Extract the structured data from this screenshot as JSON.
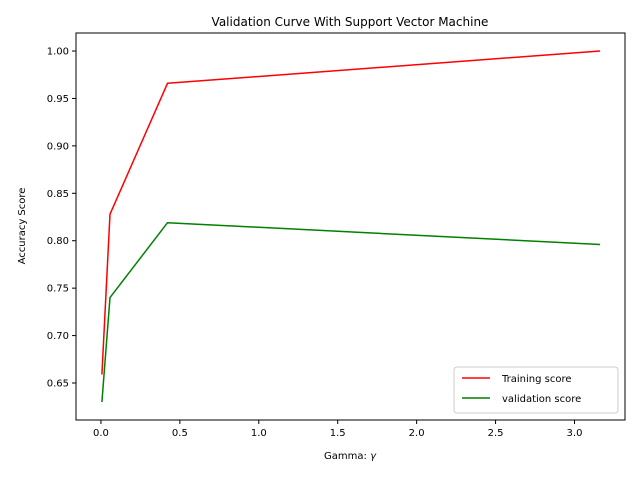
{
  "chart_data": {
    "type": "line",
    "title": "Validation Curve With Support Vector Machine",
    "xlabel": "Gamma: ",
    "xlabel_symbol": "γ",
    "ylabel": "Accuracy Score",
    "xlim": [
      -0.158,
      3.32
    ],
    "ylim": [
      0.611,
      1.019
    ],
    "xticks": [
      0.0,
      0.5,
      1.0,
      1.5,
      2.0,
      2.5,
      3.0
    ],
    "xtick_labels": [
      "0.0",
      "0.5",
      "1.0",
      "1.5",
      "2.0",
      "2.5",
      "3.0"
    ],
    "yticks": [
      0.65,
      0.7,
      0.75,
      0.8,
      0.85,
      0.9,
      0.95,
      1.0
    ],
    "ytick_labels": [
      "0.65",
      "0.70",
      "0.75",
      "0.80",
      "0.85",
      "0.90",
      "0.95",
      "1.00"
    ],
    "grid": false,
    "legend_position": "bottom-right",
    "x": [
      0.0058,
      0.0571,
      0.4214,
      3.1623
    ],
    "series": [
      {
        "name": "Training score",
        "color": "#ff0000",
        "values": [
          0.659,
          0.828,
          0.966,
          1.0
        ]
      },
      {
        "name": "validation score",
        "color": "#008000",
        "values": [
          0.63,
          0.74,
          0.819,
          0.796
        ]
      }
    ]
  }
}
